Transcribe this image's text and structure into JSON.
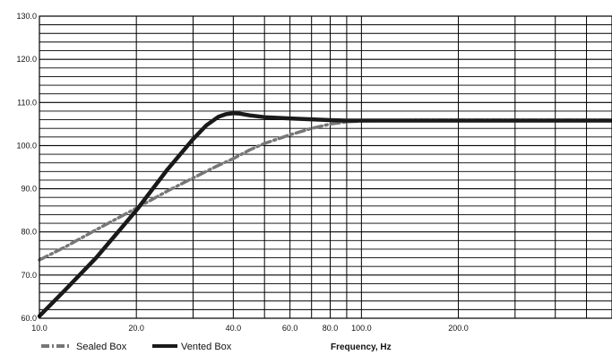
{
  "chart_data": {
    "type": "line",
    "title": "",
    "xlabel": "Frequency, Hz",
    "ylabel": "",
    "x_scale": "log",
    "xlim": [
      10,
      600
    ],
    "ylim": [
      60,
      130
    ],
    "grid": true,
    "legend_position": "bottom-left",
    "x_tick_values": [
      10,
      20,
      40,
      60,
      80,
      100,
      200
    ],
    "x_tick_labels": [
      "10.0",
      "20.0",
      "40.0",
      "60.0",
      "80.0",
      "100.0",
      "200.0"
    ],
    "y_tick_values": [
      60,
      70,
      80,
      90,
      100,
      110,
      120,
      130
    ],
    "y_tick_labels": [
      "60.0",
      "70.0",
      "80.0",
      "90.0",
      "100.0",
      "110.0",
      "120.0",
      "130.0"
    ],
    "series": [
      {
        "name": "Sealed Box",
        "style": "dash-dot",
        "color": "#777777",
        "x": [
          10,
          12,
          15,
          20,
          25,
          30,
          35,
          40,
          45,
          50,
          60,
          70,
          80,
          90,
          100,
          150,
          200,
          300,
          400,
          600
        ],
        "y": [
          73.5,
          76.5,
          80.5,
          85.5,
          89.5,
          92.5,
          95.0,
          97.0,
          99.0,
          100.5,
          102.5,
          104.0,
          105.0,
          105.5,
          105.7,
          105.9,
          105.9,
          105.9,
          105.9,
          105.9
        ]
      },
      {
        "name": "Vented Box",
        "style": "solid",
        "color": "#1a1a1a",
        "x": [
          10,
          12,
          15,
          20,
          25,
          30,
          33,
          36,
          38,
          40,
          42,
          45,
          50,
          60,
          70,
          80,
          90,
          100,
          150,
          200,
          300,
          400,
          600
        ],
        "y": [
          60.5,
          66.5,
          74.0,
          85.0,
          94.5,
          101.5,
          104.7,
          106.7,
          107.3,
          107.5,
          107.4,
          107.0,
          106.6,
          106.3,
          106.1,
          105.9,
          105.8,
          105.8,
          105.8,
          105.8,
          105.8,
          105.8,
          105.8
        ]
      }
    ]
  }
}
